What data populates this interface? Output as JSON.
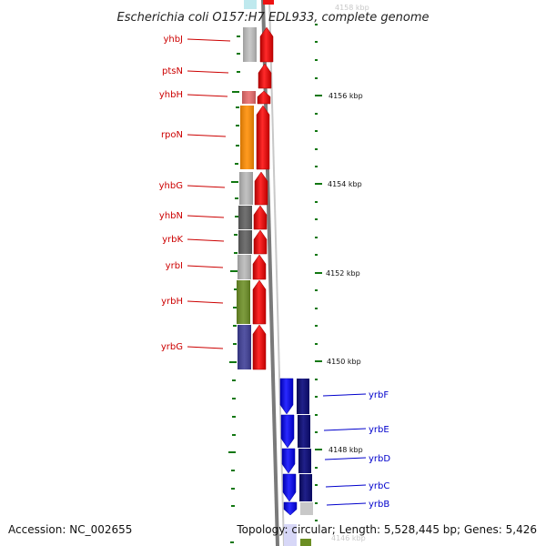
{
  "title": "Escherichia coli O157:H7 EDL933, complete genome",
  "footer": {
    "accession": "Accession: NC_002655",
    "topology": "Topology: circular; Length: 5,528,445 bp; Genes: 5,426"
  },
  "colors": {
    "forward_arrow": "#ee1111",
    "reverse_arrow": "#1111ee",
    "reverse_arrow_dark": "#111177",
    "forward_label": "#cc0000",
    "reverse_label": "#0000cc",
    "tick": "#117711",
    "backbone": "#888888"
  },
  "kbp_labels": [
    {
      "text": "4158 kbp",
      "faded": true
    },
    {
      "text": "4156 kbp",
      "faded": false
    },
    {
      "text": "4154 kbp",
      "faded": false
    },
    {
      "text": "4152 kbp",
      "faded": false
    },
    {
      "text": "4150 kbp",
      "faded": false
    },
    {
      "text": "4148 kbp",
      "faded": false
    },
    {
      "text": "4146 kbp",
      "faded": true
    }
  ],
  "forward_genes": [
    {
      "name": "yhbJ",
      "color": "#c0c0c0"
    },
    {
      "name": "ptsN",
      "color": "#ffffff"
    },
    {
      "name": "yhbH",
      "color": "#e86a6a"
    },
    {
      "name": "rpoN",
      "color": "#ff8c00"
    },
    {
      "name": "yhbG",
      "color": "#b8b8b8"
    },
    {
      "name": "yhbN",
      "color": "#5e5e5e"
    },
    {
      "name": "yrbK",
      "color": "#5e5e5e"
    },
    {
      "name": "yrbI",
      "color": "#b8b8b8"
    },
    {
      "name": "yrbH",
      "color": "#6b8e23"
    },
    {
      "name": "yrbG",
      "color": "#3c3c96"
    }
  ],
  "reverse_genes": [
    {
      "name": "yrbF"
    },
    {
      "name": "yrbE"
    },
    {
      "name": "yrbD"
    },
    {
      "name": "yrbC"
    },
    {
      "name": "yrbB"
    }
  ]
}
